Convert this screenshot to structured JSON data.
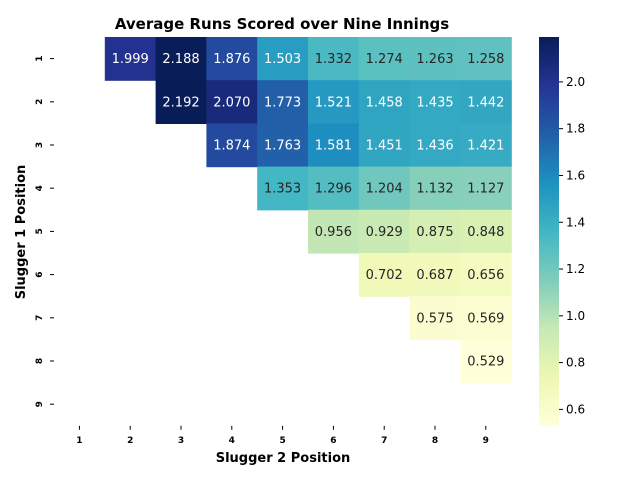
{
  "chart_data": {
    "type": "heatmap",
    "title": "Average Runs Scored over Nine Innings",
    "xlabel": "Slugger 2 Position",
    "ylabel": "Slugger 1 Position",
    "x_categories": [
      "1",
      "2",
      "3",
      "4",
      "5",
      "6",
      "7",
      "8",
      "9"
    ],
    "y_categories": [
      "1",
      "2",
      "3",
      "4",
      "5",
      "6",
      "7",
      "8",
      "9"
    ],
    "values": [
      [
        null,
        1.999,
        2.188,
        1.876,
        1.503,
        1.332,
        1.274,
        1.263,
        1.258
      ],
      [
        null,
        null,
        2.192,
        2.07,
        1.773,
        1.521,
        1.458,
        1.435,
        1.442
      ],
      [
        null,
        null,
        null,
        1.874,
        1.763,
        1.581,
        1.451,
        1.436,
        1.421
      ],
      [
        null,
        null,
        null,
        null,
        1.353,
        1.296,
        1.204,
        1.132,
        1.127
      ],
      [
        null,
        null,
        null,
        null,
        null,
        0.956,
        0.929,
        0.875,
        0.848
      ],
      [
        null,
        null,
        null,
        null,
        null,
        null,
        0.702,
        0.687,
        0.656
      ],
      [
        null,
        null,
        null,
        null,
        null,
        null,
        null,
        0.575,
        0.569
      ],
      [
        null,
        null,
        null,
        null,
        null,
        null,
        null,
        null,
        0.529
      ],
      [
        null,
        null,
        null,
        null,
        null,
        null,
        null,
        null,
        null
      ]
    ],
    "value_format": "3 decimals",
    "colormap": "YlGnBu",
    "color_range": [
      0.529,
      2.192
    ],
    "colorbar_ticks": [
      "0.6",
      "0.8",
      "1.0",
      "1.2",
      "1.4",
      "1.6",
      "1.8",
      "2.0"
    ],
    "grid": false
  }
}
